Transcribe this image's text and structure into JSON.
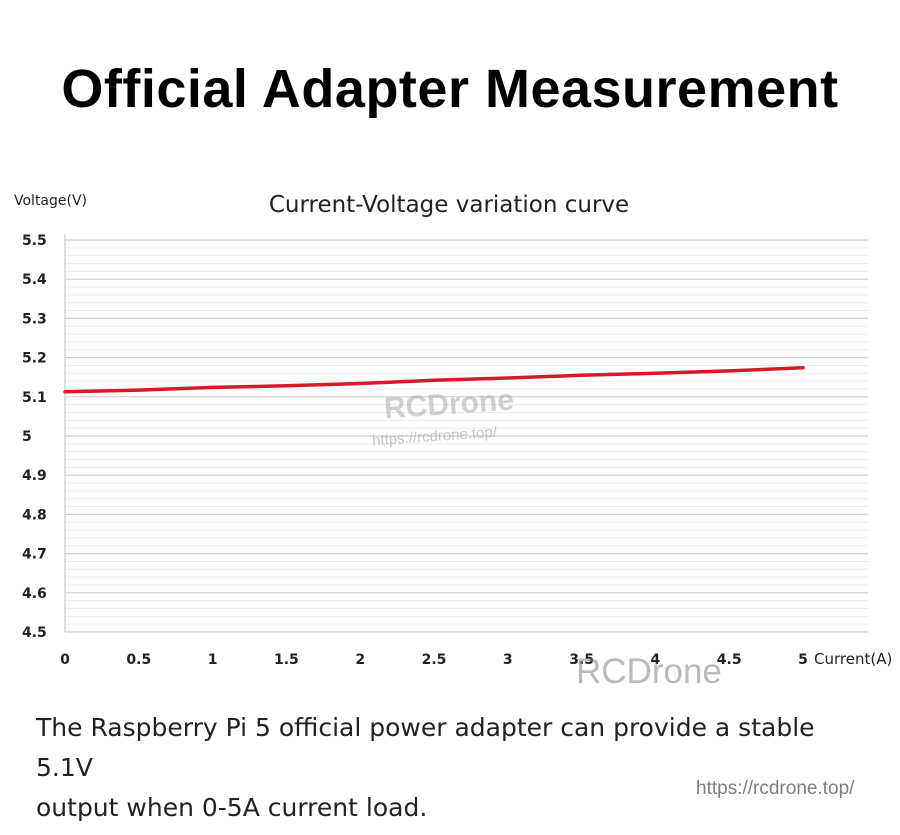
{
  "headline": "Official Adapter Measurement",
  "caption_line1": "The Raspberry Pi 5 official power adapter can provide a stable 5.1V",
  "caption_line2": "output when 0-5A current load.",
  "watermarks": {
    "brand": "RCDrone",
    "url": "https://rcdrone.top/",
    "brand_large": "RCDrone"
  },
  "footer_url": "https://rcdrone.top/",
  "chart_data": {
    "type": "line",
    "title": "Current-Voltage variation curve",
    "xlabel": "Current(A)",
    "ylabel": "Voltage(V)",
    "xlim": [
      0,
      5
    ],
    "ylim": [
      4.5,
      5.5
    ],
    "x_ticks": [
      "0",
      "0.5",
      "1",
      "1.5",
      "2",
      "2.5",
      "3",
      "3.5",
      "4",
      "4.5",
      "5"
    ],
    "y_ticks": [
      "4.5",
      "4.6",
      "4.7",
      "4.8",
      "4.9",
      "5",
      "5.1",
      "5.2",
      "5.3",
      "5.4",
      "5.5"
    ],
    "grid": true,
    "line_color": "#d7192a",
    "series": [
      {
        "x": [
          0,
          0.5,
          1,
          1.5,
          2,
          2.5,
          3,
          3.5,
          4,
          4.5,
          5
        ],
        "y": [
          5.113,
          5.117,
          5.124,
          5.128,
          5.134,
          5.142,
          5.148,
          5.155,
          5.16,
          5.166,
          5.174
        ]
      }
    ]
  }
}
